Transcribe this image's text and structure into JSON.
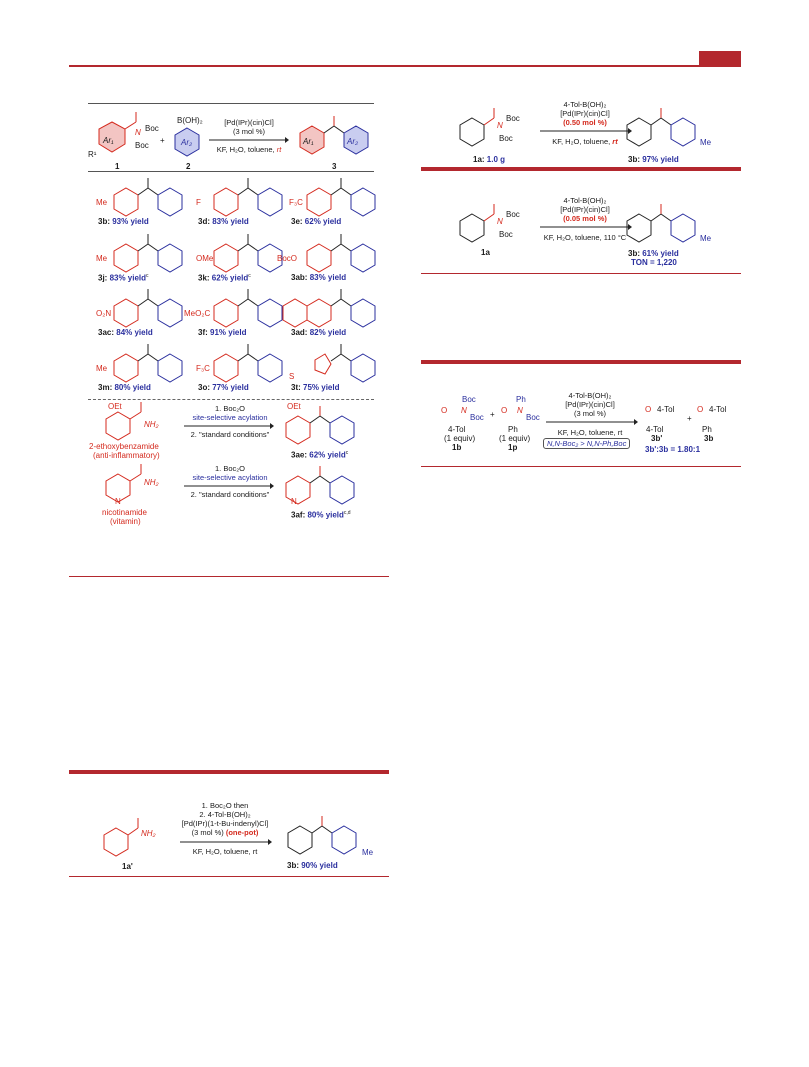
{
  "header": {
    "accent": "#b3282e"
  },
  "scheme_main": {
    "reactant1_label": "1",
    "reactant2_label": "2",
    "product_label": "3",
    "r1_boc_top": "Boc",
    "r1_n": "N",
    "r1_boc_bottom": "Boc",
    "r1_sub": "R¹",
    "ar1": "Ar₁",
    "ar2": "Ar₂",
    "boronic": "B(OH)₂",
    "plus": "+",
    "cond1": "[Pd(IPr)(cin)Cl]",
    "cond2": "(3 mol %)",
    "cond3_pre": "KF, H₂O, toluene, ",
    "cond3_rt": "rt",
    "products": [
      {
        "sub": "Me",
        "id": "3b",
        "yield": "93% yield"
      },
      {
        "sub": "F",
        "id": "3d",
        "yield": "83% yield"
      },
      {
        "sub": "F₃C",
        "id": "3e",
        "yield": "62% yield"
      },
      {
        "sub": "Me",
        "id": "3j",
        "yield": "83% yield",
        "note": "c"
      },
      {
        "sub": "OMe",
        "id": "3k",
        "yield": "62% yield",
        "note": "c"
      },
      {
        "sub": "BocO",
        "id": "3ab",
        "yield": "83% yield"
      },
      {
        "sub": "O₂N",
        "id": "3ac",
        "yield": "84% yield"
      },
      {
        "sub": "MeO₂C",
        "id": "3f",
        "yield": "91% yield"
      },
      {
        "sub": "",
        "id": "3ad",
        "yield": "82% yield"
      },
      {
        "sub": "Me",
        "id": "3m",
        "yield": "80% yield"
      },
      {
        "sub": "F₃C",
        "id": "3o",
        "yield": "77% yield"
      },
      {
        "sub": "S",
        "id": "3t",
        "yield": "75% yield"
      }
    ],
    "drug1": {
      "name": "2-ethoxybenzamide",
      "desc": "(anti-inflammatory)",
      "oet": "OEt",
      "nh2": "NH₂",
      "step1": "1. Boc₂O",
      "step_blue": "site-selective acylation",
      "step2": "2. \"standard conditions\"",
      "product_id": "3ae",
      "yield": "62% yield",
      "note": "c"
    },
    "drug2": {
      "name": "nicotinamide",
      "desc": "(vitamin)",
      "n": "N",
      "nh2": "NH₂",
      "step1": "1. Boc₂O",
      "step_blue": "site-selective acylation",
      "step2": "2. \"standard conditions\"",
      "product_id": "3af",
      "yield": "80% yield",
      "note": "c,d"
    }
  },
  "scheme_onepot": {
    "c1": "1. Boc₂O then",
    "c2": "2. 4-Tol-B(OH)₂",
    "c3": "[Pd(IPr)(1-t-Bu-indenyl)Cl]",
    "c4a": "(3 mol %) ",
    "c4b": "(one-pot)",
    "c5": "KF, H₂O, toluene, rt",
    "sm": "1a'",
    "nh2": "NH₂",
    "product_id": "3b",
    "yield": "90% yield",
    "me": "Me"
  },
  "scheme_gram": {
    "c1": "4-Tol-B(OH)₂",
    "c2": "[Pd(IPr)(cin)Cl]",
    "c3": "(0.50 mol %)",
    "c4_pre": "KF, H₂O, toluene, ",
    "c4_rt": "rt",
    "sm": "1a",
    "sm_amount": "1.0 g",
    "boc1": "Boc",
    "boc2": "Boc",
    "n": "N",
    "product_id": "3b",
    "yield": "97% yield",
    "me": "Me"
  },
  "scheme_ton": {
    "c1": "4-Tol-B(OH)₂",
    "c2": "[Pd(IPr)(cin)Cl]",
    "c3": "(0.05 mol %)",
    "c4": "KF, H₂O, toluene, 110 °C",
    "sm": "1a",
    "boc1": "Boc",
    "boc2": "Boc",
    "n": "N",
    "product_id": "3b",
    "yield": "61% yield",
    "ton": "TON = 1,220",
    "me": "Me"
  },
  "scheme_comp": {
    "c1": "4-Tol-B(OH)₂",
    "c2": "[Pd(IPr)(cin)Cl]",
    "c3": "(3 mol %)",
    "c4": "KF, H₂O, toluene, rt",
    "box": "N,N-Boc₂ > N,N-Ph,Boc",
    "a_boc1": "Boc",
    "a_n": "N",
    "a_boc2": "Boc",
    "a_tol": "4-Tol",
    "a_eq": "(1 equiv)",
    "a_id": "1b",
    "b_ph": "Ph",
    "b_n": "N",
    "b_boc": "Boc",
    "b_ph2": "Ph",
    "b_eq": "(1 equiv)",
    "b_id": "1p",
    "p1_tol1": "4-Tol",
    "p1_tol2": "4-Tol",
    "p1_id": "3b'",
    "p2_tol": "4-Tol",
    "p2_ph": "Ph",
    "p2_id": "3b",
    "ratio": "3b':3b = 1.80:1",
    "plus": "+"
  }
}
